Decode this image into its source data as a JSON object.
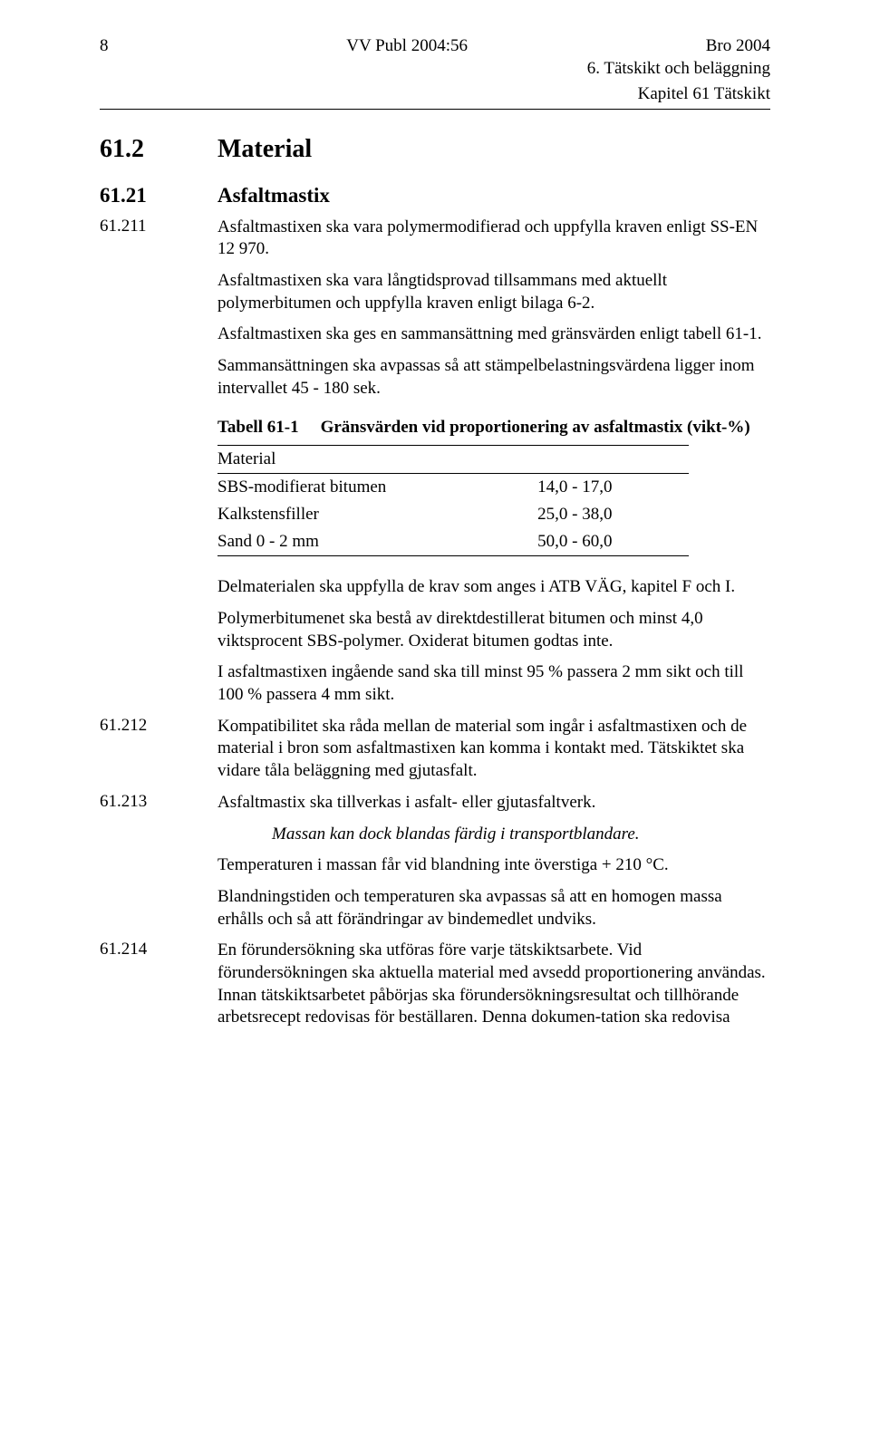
{
  "header": {
    "page_num": "8",
    "pub": "VV Publ 2004:56",
    "doc": "Bro 2004",
    "sub1": "6. Tätskikt och beläggning",
    "sub2": "Kapitel 61 Tätskikt"
  },
  "s61_2": {
    "num": "61.2",
    "title": "Material"
  },
  "s61_21": {
    "num": "61.21",
    "title": "Asfaltmastix"
  },
  "p61_211": {
    "num": "61.211",
    "t1": "Asfaltmastixen ska vara polymermodifierad och uppfylla kraven enligt SS-EN 12 970.",
    "t2": "Asfaltmastixen ska vara långtidsprovad tillsammans med aktuellt polymerbitumen och uppfylla kraven enligt bilaga 6-2.",
    "t3": "Asfaltmastixen ska ges en sammansättning med gränsvärden enligt tabell 61-1.",
    "t4": "Sammansättningen ska avpassas så att stämpelbelastningsvärdena ligger inom intervallet 45 - 180 sek."
  },
  "table61_1": {
    "label": "Tabell 61-1",
    "caption": "Gränsvärden vid proportionering av asfaltmastix (vikt-%)",
    "head": "Material",
    "rows": [
      {
        "m": "SBS-modifierat bitumen",
        "v": "14,0 - 17,0"
      },
      {
        "m": "Kalkstensfiller",
        "v": "25,0 - 38,0"
      },
      {
        "m": "Sand 0 - 2 mm",
        "v": "50,0 - 60,0"
      }
    ]
  },
  "after_table": {
    "t1": "Delmaterialen ska uppfylla de krav som anges i ATB VÄG, kapitel F och I.",
    "t2": "Polymerbitumenet ska bestå av direktdestillerat bitumen och minst 4,0 viktsprocent SBS-polymer. Oxiderat bitumen godtas inte.",
    "t3": "I asfaltmastixen ingående sand ska till minst 95 % passera 2 mm sikt och till 100 % passera 4 mm sikt."
  },
  "p61_212": {
    "num": "61.212",
    "t": "Kompatibilitet ska råda mellan de material som ingår i asfaltmastixen och de material i bron som asfaltmastixen kan komma i kontakt med. Tätskiktet ska vidare tåla beläggning med gjutasfalt."
  },
  "p61_213": {
    "num": "61.213",
    "t1": "Asfaltmastix ska tillverkas i asfalt- eller gjutasfaltverk.",
    "ital": "Massan kan dock blandas färdig i transportblandare.",
    "t2": "Temperaturen i massan får vid blandning inte överstiga + 210 °C.",
    "t3": "Blandningstiden och temperaturen ska avpassas så att en homogen massa erhålls och så att förändringar av bindemedlet undviks."
  },
  "p61_214": {
    "num": "61.214",
    "t": "En förundersökning ska utföras före varje tätskiktsarbete. Vid förundersökningen ska aktuella material med avsedd proportionering användas. Innan tätskiktsarbetet påbörjas ska förundersökningsresultat och tillhörande arbetsrecept redovisas för beställaren. Denna dokumen-tation ska redovisa"
  }
}
